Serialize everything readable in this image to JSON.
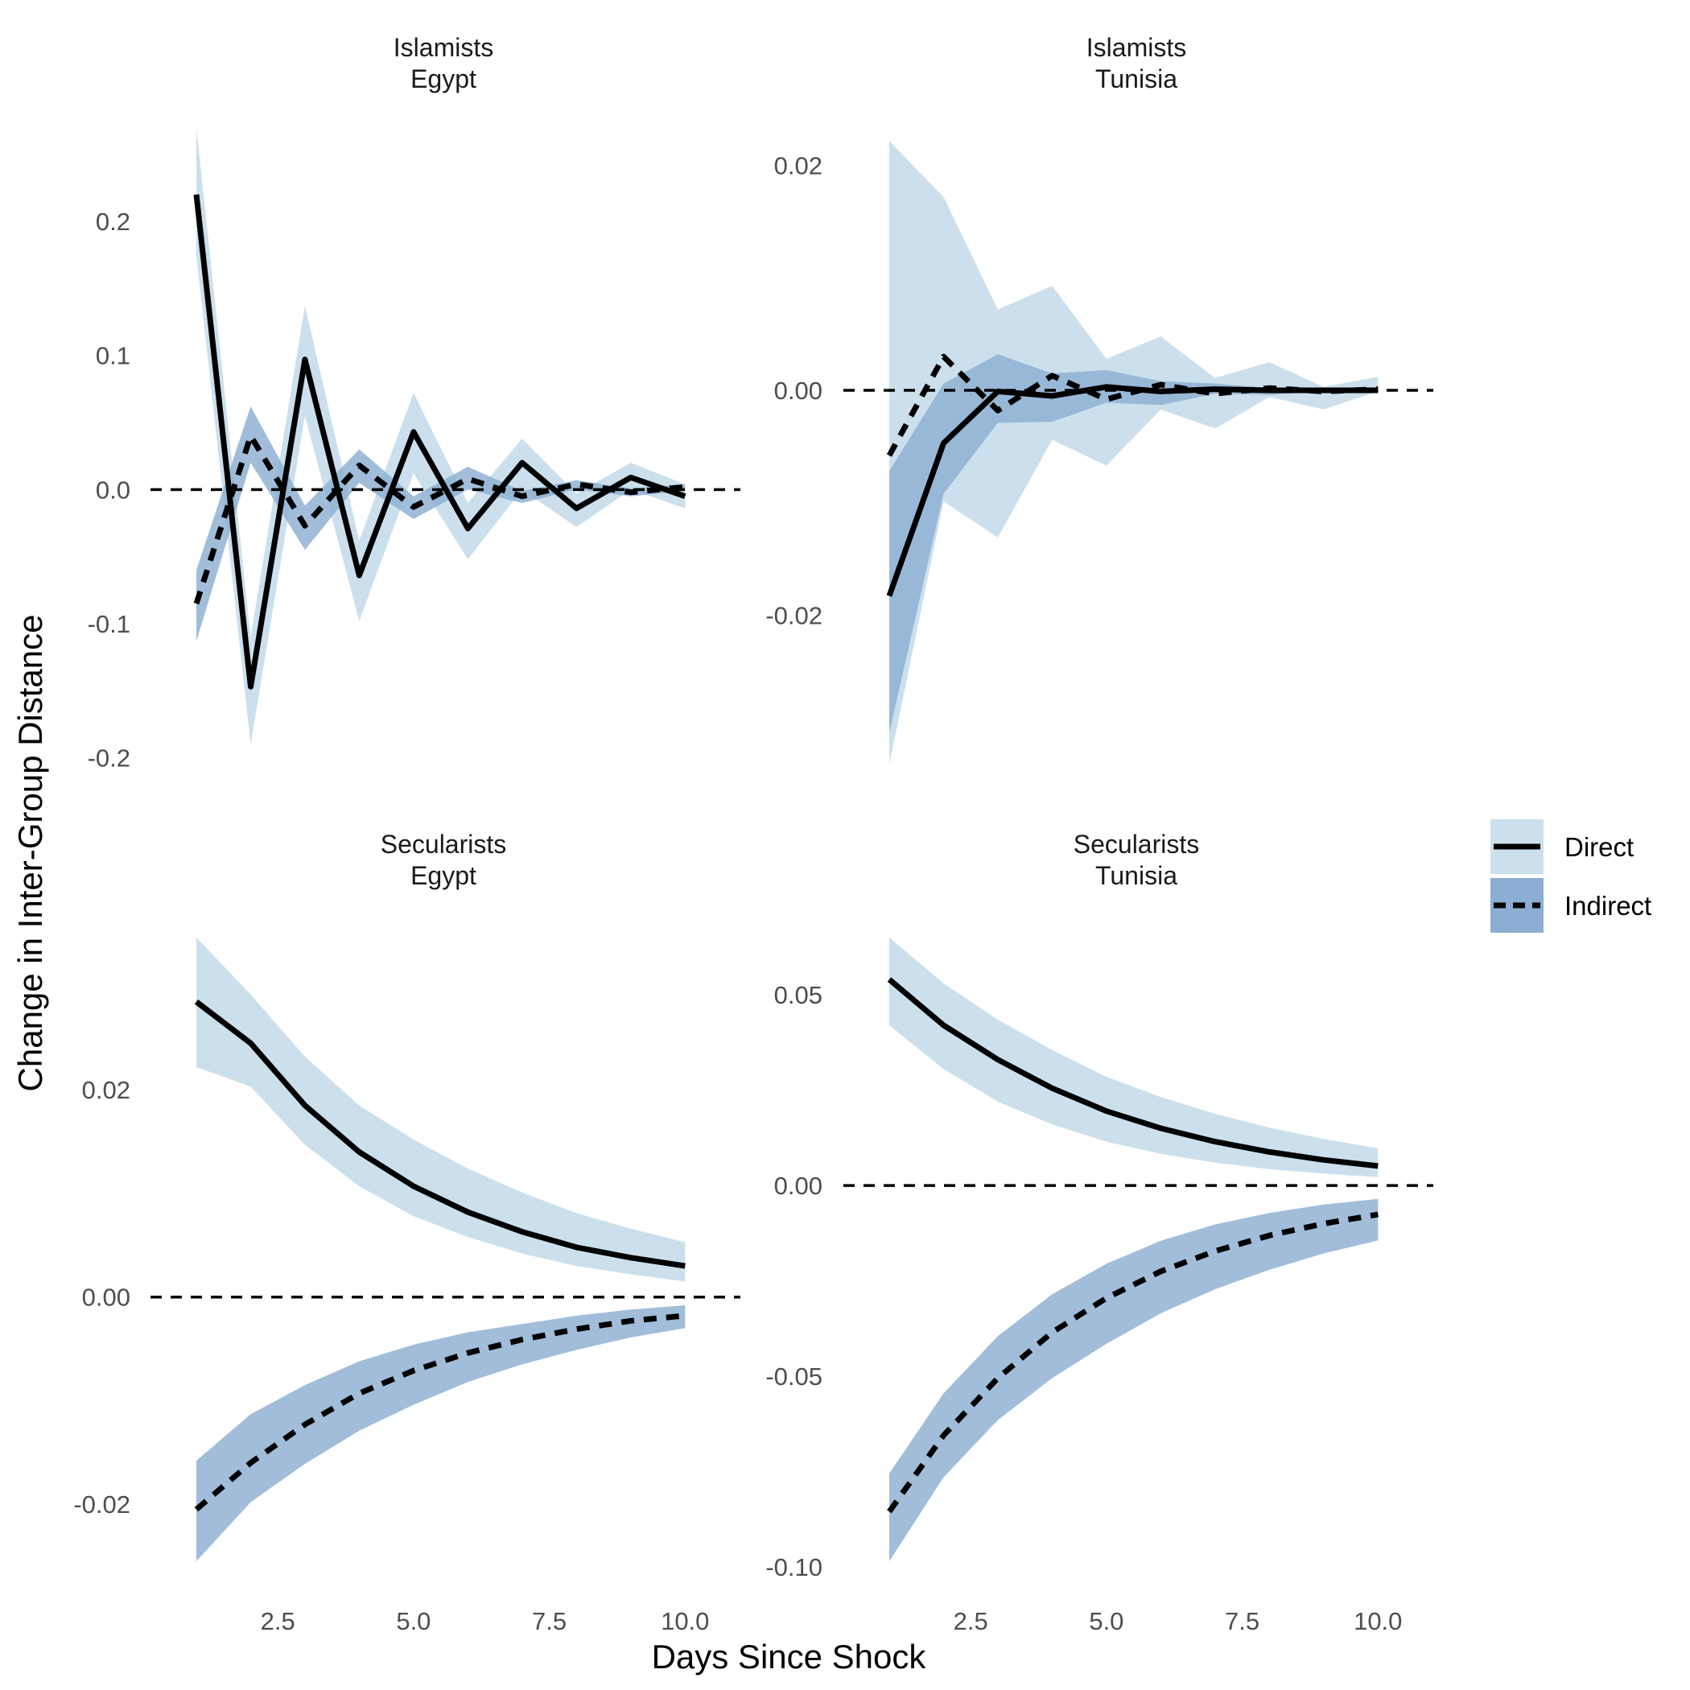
{
  "chart_data": {
    "type": "line",
    "xlabel": "Days Since Shock",
    "ylabel": "Change in Inter-Group Distance",
    "x": [
      1,
      2,
      3,
      4,
      5,
      6,
      7,
      8,
      9,
      10
    ],
    "x_ticks": [
      "2.5",
      "5.0",
      "7.5",
      "10.0"
    ],
    "x_tick_values": [
      2.5,
      5.0,
      7.5,
      10.0
    ],
    "xlim": [
      0.6,
      10.5
    ],
    "legend": {
      "position": "right",
      "entries": [
        {
          "label": "Direct",
          "line": "solid",
          "fill": "#cbe0ec"
        },
        {
          "label": "Indirect",
          "line": "dashed",
          "fill": "#8caed2"
        }
      ]
    },
    "colors": {
      "direct_band": "#cbe0ec",
      "indirect_band": "#8caed2",
      "line": "#000000",
      "zero_line": "#000000"
    },
    "panels": [
      {
        "strip": [
          "Islamists",
          "Egypt"
        ],
        "ylim": [
          -0.205,
          0.26
        ],
        "y_tick_values": [
          -0.2,
          -0.1,
          0.0,
          0.1,
          0.2
        ],
        "y_ticks": [
          "-0.2",
          "-0.1",
          "0.0",
          "0.1",
          "0.2"
        ],
        "series": [
          {
            "name": "Direct",
            "values": [
              0.22,
              -0.147,
              0.097,
              -0.064,
              0.043,
              -0.029,
              0.02,
              -0.014,
              0.009,
              -0.005
            ],
            "lower": [
              0.175,
              -0.19,
              0.055,
              -0.098,
              0.012,
              -0.052,
              0.0,
              -0.028,
              0.0,
              -0.014
            ],
            "upper": [
              0.27,
              -0.11,
              0.137,
              -0.038,
              0.072,
              -0.01,
              0.038,
              -0.003,
              0.02,
              0.004
            ]
          },
          {
            "name": "Indirect",
            "values": [
              -0.085,
              0.04,
              -0.027,
              0.018,
              -0.013,
              0.008,
              -0.005,
              0.004,
              -0.002,
              0.002
            ],
            "lower": [
              -0.113,
              0.02,
              -0.045,
              0.005,
              -0.022,
              0.0,
              -0.01,
              0.0,
              -0.005,
              -0.001
            ],
            "upper": [
              -0.06,
              0.062,
              -0.012,
              0.03,
              -0.005,
              0.017,
              -0.001,
              0.007,
              0.001,
              0.004
            ]
          }
        ]
      },
      {
        "strip": [
          "Islamists",
          "Tunisia"
        ],
        "ylim": [
          -0.0333,
          0.0222
        ],
        "y_tick_values": [
          -0.02,
          0.0,
          0.02
        ],
        "y_ticks": [
          "-0.02",
          "0.00",
          "0.02"
        ],
        "series": [
          {
            "name": "Direct",
            "values": [
              -0.0183,
              -0.0047,
              -0.0001,
              -0.0005,
              0.0003,
              -0.0001,
              0.0001,
              0.0,
              0.0,
              0.0
            ],
            "lower": [
              -0.0333,
              -0.0099,
              -0.0131,
              -0.0044,
              -0.0067,
              -0.0017,
              -0.0034,
              -0.0006,
              -0.0017,
              -0.0001
            ],
            "upper": [
              0.0222,
              0.0172,
              0.0072,
              0.0093,
              0.0028,
              0.0048,
              0.0011,
              0.0025,
              0.0003,
              0.0012
            ]
          },
          {
            "name": "Indirect",
            "values": [
              -0.0058,
              0.003,
              -0.0018,
              0.0013,
              -0.0008,
              0.0005,
              -0.0003,
              0.0002,
              -0.0001,
              0.0001
            ],
            "lower": [
              -0.0305,
              -0.0092,
              -0.0029,
              -0.0028,
              -0.0011,
              -0.0013,
              -0.0003,
              -0.0004,
              -0.0001,
              0.0
            ],
            "upper": [
              -0.0072,
              0.0006,
              0.0032,
              0.0015,
              0.0018,
              0.0008,
              0.0006,
              0.0002,
              0.0002,
              0.0
            ]
          }
        ]
      },
      {
        "strip": [
          "Secularists",
          "Egypt"
        ],
        "ylim": [
          -0.0255,
          0.0347
        ],
        "y_tick_values": [
          -0.02,
          0.0,
          0.02
        ],
        "y_ticks": [
          "-0.02",
          "0.00",
          "0.02"
        ],
        "series": [
          {
            "name": "Direct",
            "values": [
              0.0285,
              0.0245,
              0.0185,
              0.014,
              0.0107,
              0.0082,
              0.0063,
              0.0048,
              0.0038,
              0.003
            ],
            "lower": [
              0.0222,
              0.0203,
              0.0147,
              0.0107,
              0.0078,
              0.0058,
              0.0042,
              0.003,
              0.0022,
              0.0015
            ],
            "upper": [
              0.0347,
              0.0292,
              0.0232,
              0.0185,
              0.0152,
              0.0124,
              0.0101,
              0.0081,
              0.0066,
              0.0053
            ]
          },
          {
            "name": "Indirect",
            "values": [
              -0.0205,
              -0.016,
              -0.0123,
              -0.0093,
              -0.0071,
              -0.0054,
              -0.0041,
              -0.0031,
              -0.0023,
              -0.0018
            ],
            "lower": [
              -0.0255,
              -0.0198,
              -0.0161,
              -0.0129,
              -0.0104,
              -0.0082,
              -0.0065,
              -0.0051,
              -0.0039,
              -0.003
            ],
            "upper": [
              -0.0158,
              -0.0113,
              -0.0085,
              -0.0062,
              -0.0046,
              -0.0034,
              -0.0026,
              -0.0018,
              -0.0012,
              -0.0008
            ]
          }
        ]
      },
      {
        "strip": [
          "Secularists",
          "Tunisia"
        ],
        "ylim": [
          -0.0985,
          0.065
        ],
        "y_tick_values": [
          -0.1,
          -0.05,
          0.0,
          0.05
        ],
        "y_ticks": [
          "-0.10",
          "-0.05",
          "0.00",
          "0.05"
        ],
        "series": [
          {
            "name": "Direct",
            "values": [
              0.054,
              0.042,
              0.033,
              0.0255,
              0.0195,
              0.015,
              0.0115,
              0.0088,
              0.0067,
              0.0051
            ],
            "lower": [
              0.042,
              0.0305,
              0.022,
              0.016,
              0.0115,
              0.0083,
              0.006,
              0.0043,
              0.0031,
              0.0022
            ],
            "upper": [
              0.065,
              0.053,
              0.0435,
              0.0355,
              0.0285,
              0.0232,
              0.0188,
              0.0152,
              0.0122,
              0.0098
            ]
          },
          {
            "name": "Indirect",
            "values": [
              -0.0855,
              -0.0655,
              -0.0505,
              -0.0385,
              -0.0295,
              -0.0225,
              -0.0172,
              -0.0131,
              -0.01,
              -0.0076
            ],
            "lower": [
              -0.0985,
              -0.0765,
              -0.0615,
              -0.0505,
              -0.0415,
              -0.0335,
              -0.0272,
              -0.0221,
              -0.0178,
              -0.0144
            ],
            "upper": [
              -0.0755,
              -0.0545,
              -0.0395,
              -0.0285,
              -0.0205,
              -0.0145,
              -0.0102,
              -0.0072,
              -0.005,
              -0.0035
            ]
          }
        ]
      }
    ]
  }
}
